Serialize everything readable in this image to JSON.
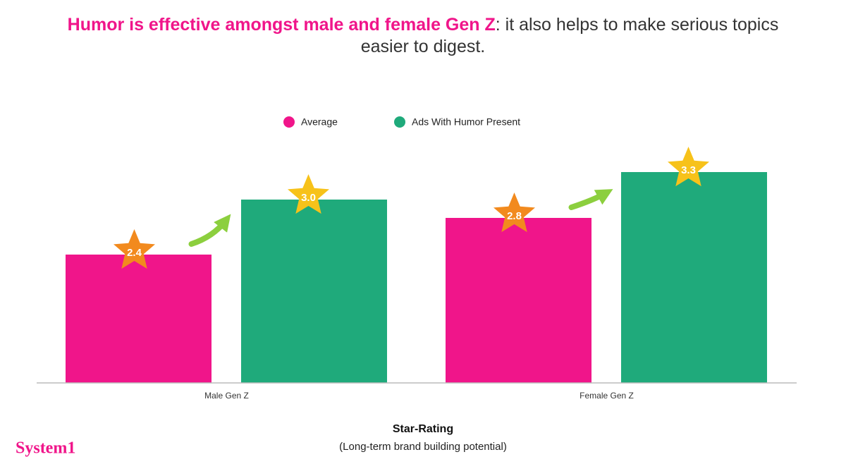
{
  "chart_data": {
    "type": "bar",
    "title": [
      "Humor is effective amongst male and female Gen Z",
      ": it also helps to make serious topics easier to digest."
    ],
    "categories": [
      "Male Gen Z",
      "Female Gen Z"
    ],
    "series": [
      {
        "name": "Average",
        "color": "#f0158a",
        "star_color": "#f28a1e",
        "values": [
          2.4,
          2.8
        ],
        "value_labels": [
          "2.4",
          "2.8"
        ]
      },
      {
        "name": "Ads With Humor Present",
        "color": "#1faa7b",
        "star_color": "#f7c21a",
        "values": [
          3.0,
          3.3
        ],
        "value_labels": [
          "3.0",
          "3.3"
        ]
      }
    ],
    "ylim": [
      1,
      3.5
    ],
    "x_label": "Star-Rating",
    "x_sublabel": "(Long-term brand building potential)",
    "brand": "System1"
  }
}
